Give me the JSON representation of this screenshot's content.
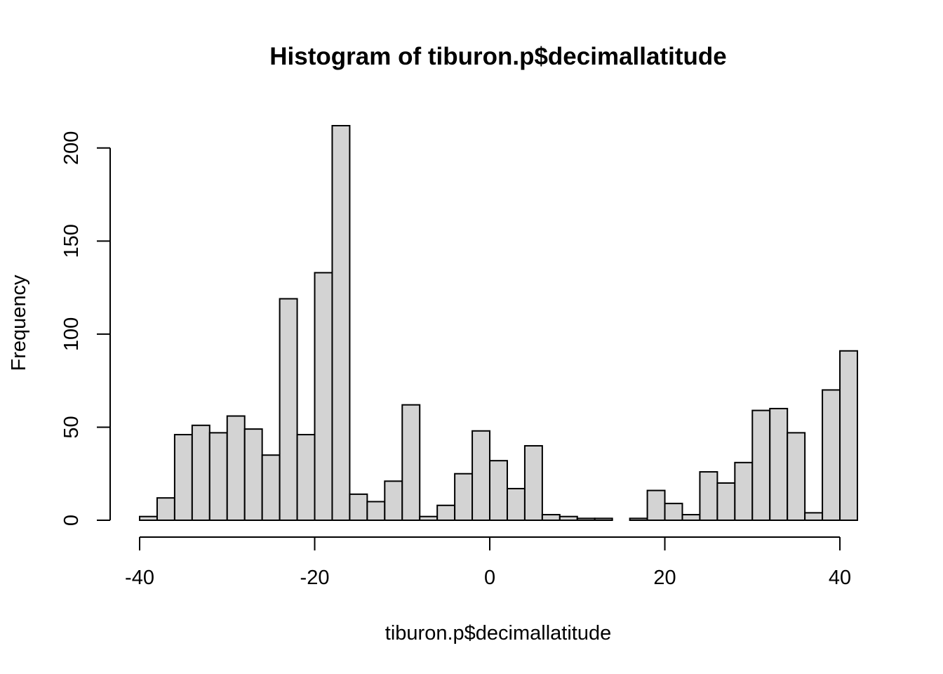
{
  "chart_data": {
    "type": "bar",
    "title": "Histogram of tiburon.p$decimallatitude",
    "xlabel": "tiburon.p$decimallatitude",
    "ylabel": "Frequency",
    "bin_width": 2,
    "bin_starts": [
      -40,
      -38,
      -36,
      -34,
      -32,
      -30,
      -28,
      -26,
      -24,
      -22,
      -20,
      -18,
      -16,
      -14,
      -12,
      -10,
      -8,
      -6,
      -4,
      -2,
      0,
      2,
      4,
      6,
      8,
      10,
      12,
      14,
      16,
      18,
      20,
      22,
      24,
      26,
      28,
      30,
      32,
      34,
      36,
      38,
      40
    ],
    "values": [
      2,
      12,
      46,
      51,
      47,
      56,
      49,
      35,
      119,
      46,
      133,
      212,
      14,
      10,
      21,
      62,
      2,
      8,
      25,
      48,
      32,
      17,
      40,
      3,
      2,
      1,
      1,
      0,
      1,
      16,
      9,
      3,
      26,
      20,
      31,
      59,
      60,
      47,
      4,
      70,
      91
    ],
    "xlim": [
      -40,
      42
    ],
    "ylim": [
      0,
      212
    ],
    "x_ticks": [
      "-40",
      "-20",
      "0",
      "20",
      "40"
    ],
    "x_tick_values": [
      -40,
      -20,
      0,
      20,
      40
    ],
    "y_ticks": [
      "0",
      "50",
      "100",
      "150",
      "200"
    ],
    "y_tick_values": [
      0,
      50,
      100,
      150,
      200
    ],
    "grid": false,
    "bar_fill": "#d3d3d3",
    "bar_stroke": "#000000"
  }
}
